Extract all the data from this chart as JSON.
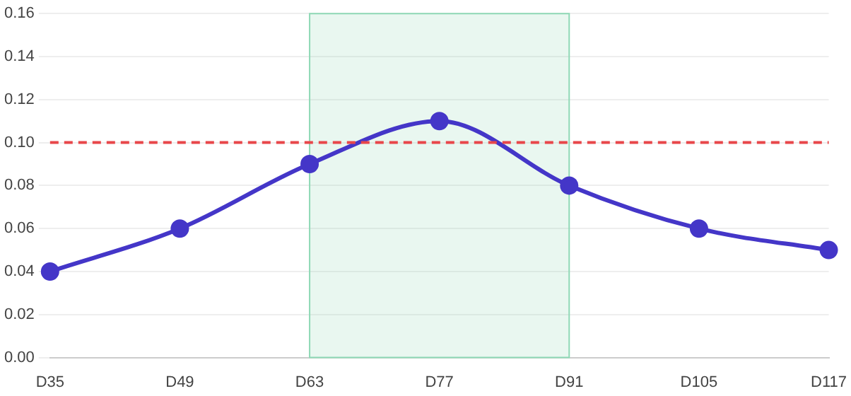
{
  "chart_data": {
    "type": "line",
    "categories": [
      "D35",
      "D49",
      "D63",
      "D77",
      "D91",
      "D105",
      "D117"
    ],
    "series": [
      {
        "color": "#4436c8",
        "values": [
          0.04,
          0.06,
          0.09,
          0.11,
          0.08,
          0.06,
          0.05
        ]
      }
    ],
    "ylim": [
      0,
      0.16
    ],
    "yticks": [
      {
        "value": 0,
        "label": "0.00"
      },
      {
        "value": 0.02,
        "label": "0.02"
      },
      {
        "value": 0.04,
        "label": "0.04"
      },
      {
        "value": 0.06,
        "label": "0.06"
      },
      {
        "value": 0.08,
        "label": "0.08"
      },
      {
        "value": 0.1,
        "label": "0.10"
      },
      {
        "value": 0.12,
        "label": "0.12"
      },
      {
        "value": 0.14,
        "label": "0.14"
      },
      {
        "value": 0.16,
        "label": "0.16"
      }
    ],
    "ref_lines": [
      {
        "axis": "y",
        "value": 0.1,
        "color": "#e8474a",
        "line_style": "dashed"
      }
    ],
    "bands": [
      {
        "axis": "x",
        "from": "D63",
        "to": "D91",
        "color": "#8fd9b6"
      }
    ],
    "grid": "y",
    "legend": false,
    "marker": "circle",
    "line_style": "solid"
  }
}
